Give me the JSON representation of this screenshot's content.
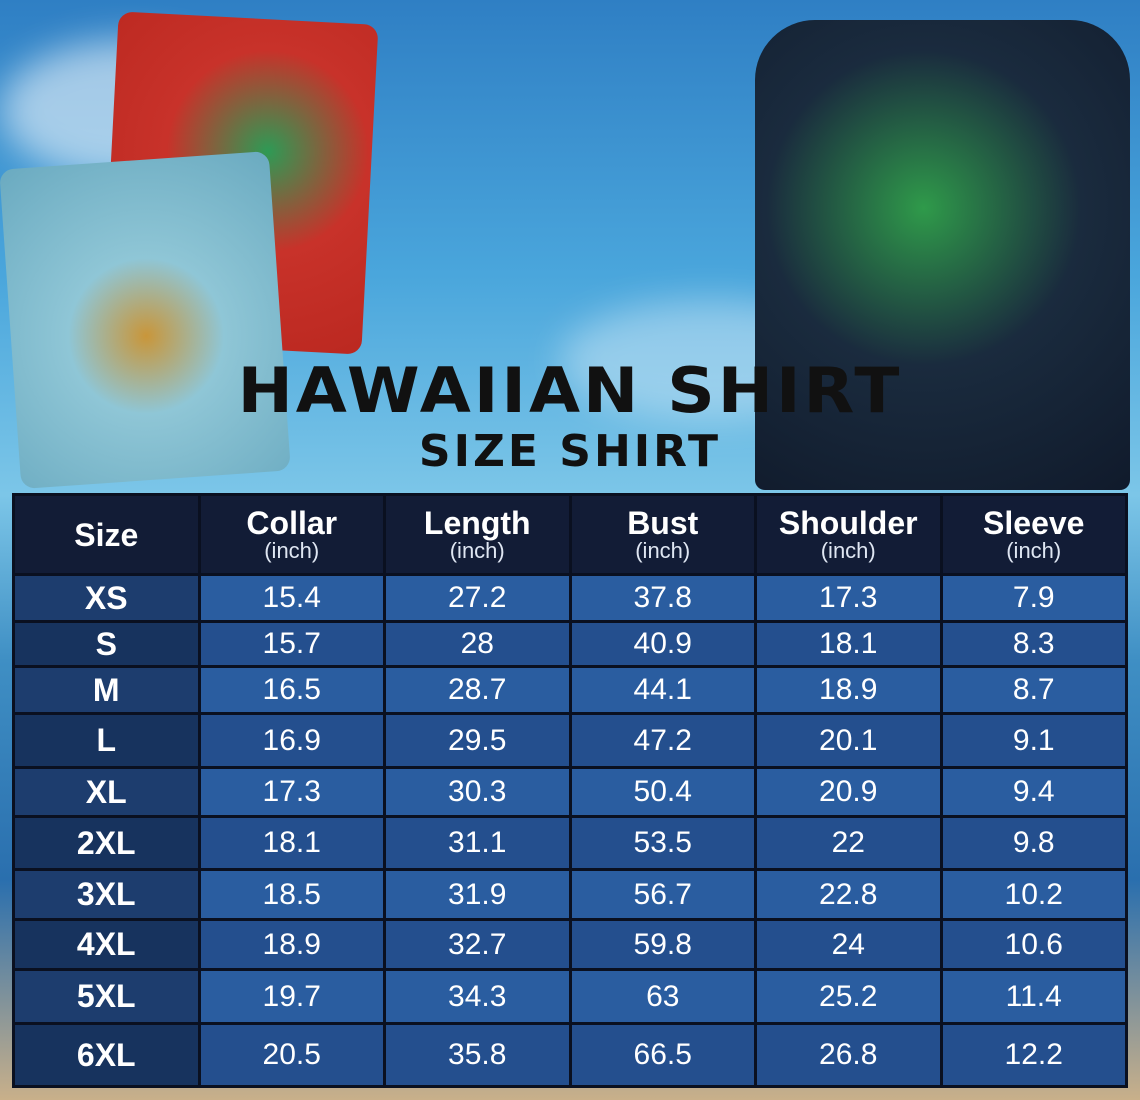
{
  "title": "HAWAIIAN SHIRT",
  "subtitle": "SIZE SHIRT",
  "columns": [
    {
      "label": "Size",
      "unit": ""
    },
    {
      "label": "Collar",
      "unit": "(inch)"
    },
    {
      "label": "Length",
      "unit": "(inch)"
    },
    {
      "label": "Bust",
      "unit": "(inch)"
    },
    {
      "label": "Shoulder",
      "unit": "(inch)"
    },
    {
      "label": "Sleeve",
      "unit": "(inch)"
    }
  ],
  "rows": [
    [
      "XS",
      "15.4",
      "27.2",
      "37.8",
      "17.3",
      "7.9"
    ],
    [
      "S",
      "15.7",
      "28",
      "40.9",
      "18.1",
      "8.3"
    ],
    [
      "M",
      "16.5",
      "28.7",
      "44.1",
      "18.9",
      "8.7"
    ],
    [
      "L",
      "16.9",
      "29.5",
      "47.2",
      "20.1",
      "9.1"
    ],
    [
      "XL",
      "17.3",
      "30.3",
      "50.4",
      "20.9",
      "9.4"
    ],
    [
      "2XL",
      "18.1",
      "31.1",
      "53.5",
      "22",
      "9.8"
    ],
    [
      "3XL",
      "18.5",
      "31.9",
      "56.7",
      "22.8",
      "10.2"
    ],
    [
      "4XL",
      "18.9",
      "32.7",
      "59.8",
      "24",
      "10.6"
    ],
    [
      "5XL",
      "19.7",
      "34.3",
      "63",
      "25.2",
      "11.4"
    ],
    [
      "6XL",
      "20.5",
      "35.8",
      "66.5",
      "26.8",
      "12.2"
    ]
  ],
  "colors": {
    "header": "#121c36",
    "cell": "#2a5da0",
    "size_cell": "#1d3d6e"
  }
}
